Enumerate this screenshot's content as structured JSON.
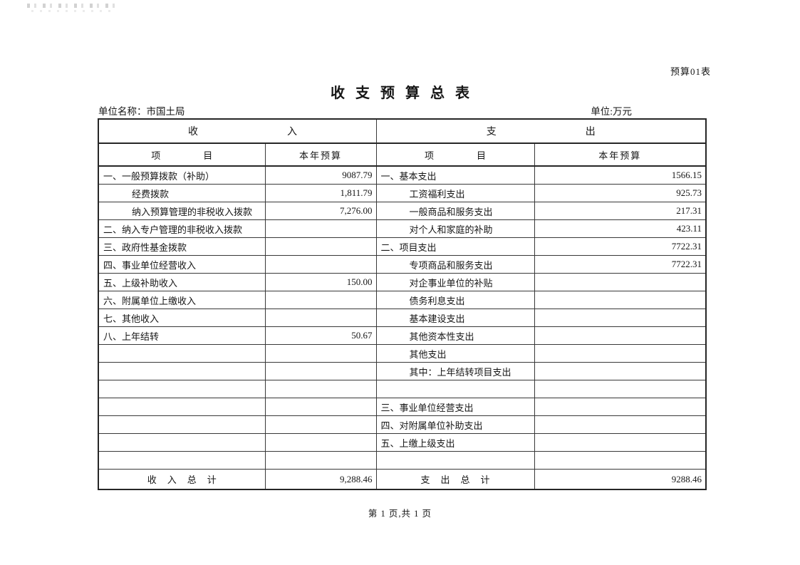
{
  "page": {
    "form_label": "预算01表",
    "title": "收支预算总表",
    "unit_name": "单位名称：市国土局",
    "unit": "单位:万元",
    "footer": "第 1 页,共 1 页"
  },
  "table": {
    "section_headers": {
      "income": "收入",
      "expense": "支出"
    },
    "column_headers": {
      "item": "项目",
      "budget": "本年预算"
    },
    "rows": [
      {
        "income": {
          "label": "一、一般预算拨款（补助）",
          "indent": 0,
          "value": "9087.79"
        },
        "expense": {
          "label": "一、基本支出",
          "indent": 0,
          "value": "1566.15"
        }
      },
      {
        "income": {
          "label": "经费拨款",
          "indent": 1,
          "value": "1,811.79"
        },
        "expense": {
          "label": "工资福利支出",
          "indent": 1,
          "value": "925.73"
        }
      },
      {
        "income": {
          "label": "纳入预算管理的非税收入拨款",
          "indent": 1,
          "value": "7,276.00"
        },
        "expense": {
          "label": "一般商品和服务支出",
          "indent": 1,
          "value": "217.31"
        }
      },
      {
        "income": {
          "label": "二、纳入专户管理的非税收入拨款",
          "indent": 0,
          "value": ""
        },
        "expense": {
          "label": "对个人和家庭的补助",
          "indent": 1,
          "value": "423.11"
        }
      },
      {
        "income": {
          "label": "三、政府性基金拨款",
          "indent": 0,
          "value": ""
        },
        "expense": {
          "label": "二、项目支出",
          "indent": 0,
          "value": "7722.31"
        }
      },
      {
        "income": {
          "label": "四、事业单位经营收入",
          "indent": 0,
          "value": ""
        },
        "expense": {
          "label": "专项商品和服务支出",
          "indent": 1,
          "value": "7722.31"
        }
      },
      {
        "income": {
          "label": "五、上级补助收入",
          "indent": 0,
          "value": "150.00"
        },
        "expense": {
          "label": "对企事业单位的补贴",
          "indent": 1,
          "value": ""
        }
      },
      {
        "income": {
          "label": "六、附属单位上缴收入",
          "indent": 0,
          "value": ""
        },
        "expense": {
          "label": "债务利息支出",
          "indent": 1,
          "value": ""
        }
      },
      {
        "income": {
          "label": "七、其他收入",
          "indent": 0,
          "value": ""
        },
        "expense": {
          "label": "基本建设支出",
          "indent": 1,
          "value": ""
        }
      },
      {
        "income": {
          "label": "八、上年结转",
          "indent": 0,
          "value": "50.67"
        },
        "expense": {
          "label": "其他资本性支出",
          "indent": 1,
          "value": ""
        }
      },
      {
        "income": {
          "label": "",
          "indent": 0,
          "value": ""
        },
        "expense": {
          "label": "其他支出",
          "indent": 1,
          "value": ""
        }
      },
      {
        "income": {
          "label": "",
          "indent": 0,
          "value": ""
        },
        "expense": {
          "label": "其中：上年结转项目支出",
          "indent": 1,
          "value": ""
        }
      },
      {
        "income": {
          "label": "",
          "indent": 0,
          "value": ""
        },
        "expense": {
          "label": "",
          "indent": 0,
          "value": ""
        }
      },
      {
        "income": {
          "label": "",
          "indent": 0,
          "value": ""
        },
        "expense": {
          "label": "三、事业单位经营支出",
          "indent": 0,
          "value": ""
        }
      },
      {
        "income": {
          "label": "",
          "indent": 0,
          "value": ""
        },
        "expense": {
          "label": "四、对附属单位补助支出",
          "indent": 0,
          "value": ""
        }
      },
      {
        "income": {
          "label": "",
          "indent": 0,
          "value": ""
        },
        "expense": {
          "label": "五、上缴上级支出",
          "indent": 0,
          "value": ""
        }
      },
      {
        "income": {
          "label": "",
          "indent": 0,
          "value": ""
        },
        "expense": {
          "label": "",
          "indent": 0,
          "value": ""
        }
      }
    ],
    "totals": {
      "income_label": "收入总计",
      "income_value": "9,288.46",
      "expense_label": "支出总计",
      "expense_value": "9288.46"
    }
  }
}
